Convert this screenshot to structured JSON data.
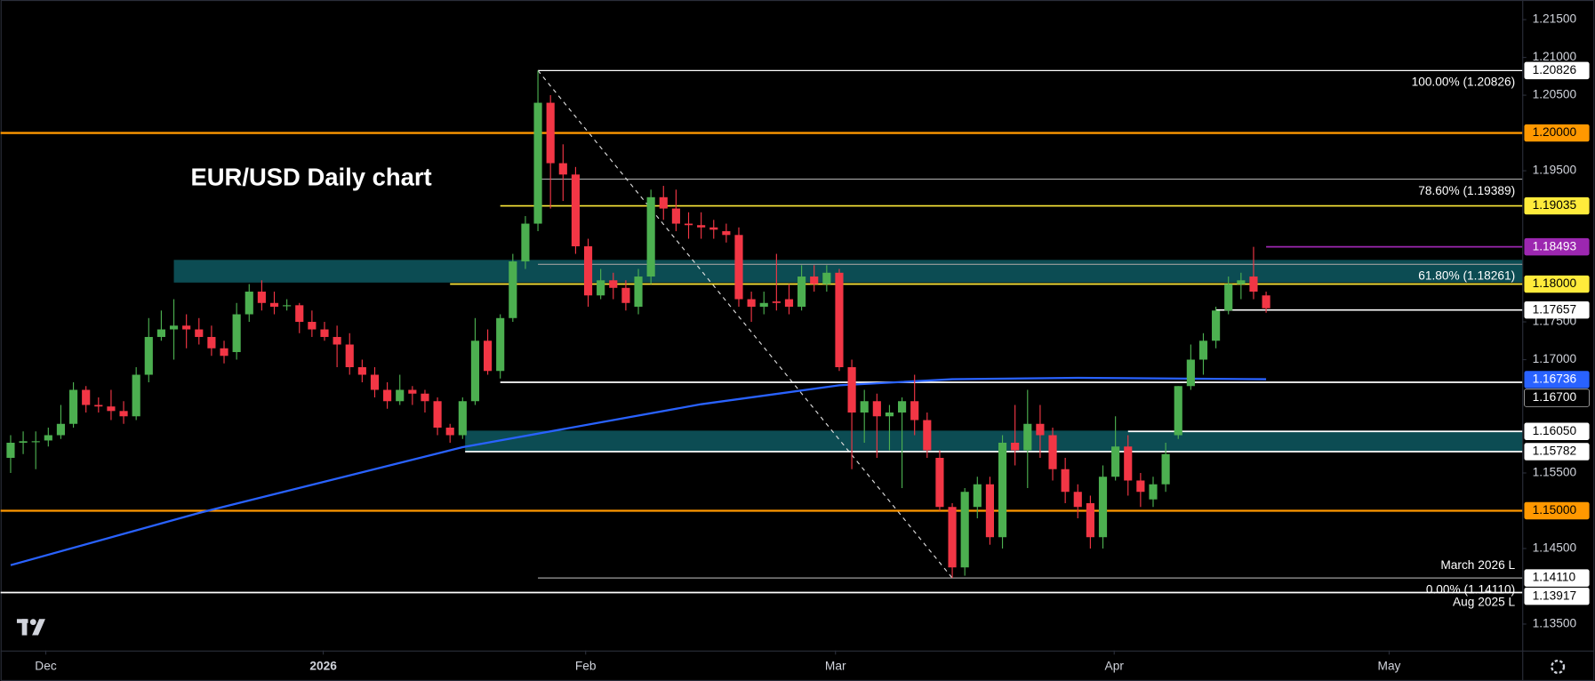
{
  "chart_data": {
    "type": "candlestick",
    "title": "EUR/USD Daily chart",
    "xlim": [
      -0.8,
      120.4
    ],
    "xticks": [
      {
        "value": 2.8,
        "label": "Dec"
      },
      {
        "value": 24.9,
        "label": "2026"
      },
      {
        "value": 45.8,
        "label": "Feb"
      },
      {
        "value": 65.7,
        "label": "Mar"
      },
      {
        "value": 87.9,
        "label": "Apr"
      },
      {
        "value": 109.8,
        "label": "May"
      }
    ],
    "ylim": [
      1.1315,
      1.2176
    ],
    "yticks": [
      {
        "value": 1.215,
        "label": "1.21500"
      },
      {
        "value": 1.21,
        "label": "1.21000"
      },
      {
        "value": 1.205,
        "label": "1.20500"
      },
      {
        "value": 1.195,
        "label": "1.19500"
      },
      {
        "value": 1.175,
        "label": "1.17500"
      },
      {
        "value": 1.17,
        "label": "1.17000"
      },
      {
        "value": 1.155,
        "label": "1.15500"
      },
      {
        "value": 1.145,
        "label": "1.14500"
      },
      {
        "value": 1.135,
        "label": "1.13500"
      }
    ],
    "up_color": "#4caf50",
    "down_color": "#f23645",
    "open": [
      1.157,
      1.159,
      1.1592,
      1.1593,
      1.16,
      1.1615,
      1.166,
      1.164,
      1.1638,
      1.1632,
      1.1625,
      1.168,
      1.173,
      1.174,
      1.1745,
      1.174,
      1.173,
      1.1715,
      1.171,
      1.176,
      1.179,
      1.1775,
      1.1772,
      1.1772,
      1.175,
      1.174,
      1.173,
      1.172,
      1.169,
      1.168,
      1.166,
      1.1645,
      1.166,
      1.1655,
      1.1645,
      1.161,
      1.16,
      1.1645,
      1.1725,
      1.1685,
      1.1755,
      1.183,
      1.188,
      1.204,
      1.196,
      1.1945,
      1.185,
      1.1785,
      1.1805,
      1.1795,
      1.177,
      1.181,
      1.1915,
      1.19,
      1.188,
      1.1878,
      1.1875,
      1.187,
      1.1865,
      1.178,
      1.177,
      1.1777,
      1.178,
      1.177,
      1.181,
      1.18,
      1.1815,
      1.169,
      1.163,
      1.1645,
      1.1625,
      1.163,
      1.1645,
      1.162,
      1.157,
      1.1505,
      1.1425,
      1.1505,
      1.1535,
      1.1465,
      1.159,
      1.158,
      1.1615,
      1.16,
      1.1555,
      1.1525,
      1.151,
      1.1465,
      1.1545,
      1.1585,
      1.154,
      1.1515,
      1.1535,
      1.16,
      1.1665,
      1.17,
      1.1725,
      1.1765,
      1.18,
      1.181,
      1.1785
    ],
    "high": [
      1.16,
      1.1605,
      1.1605,
      1.161,
      1.164,
      1.167,
      1.1665,
      1.165,
      1.166,
      1.1645,
      1.169,
      1.1755,
      1.1765,
      1.178,
      1.176,
      1.1755,
      1.1745,
      1.1725,
      1.1775,
      1.18,
      1.1805,
      1.179,
      1.178,
      1.1775,
      1.1765,
      1.175,
      1.1745,
      1.1735,
      1.17,
      1.169,
      1.167,
      1.168,
      1.1665,
      1.166,
      1.165,
      1.1615,
      1.165,
      1.1755,
      1.174,
      1.176,
      1.184,
      1.189,
      1.20826,
      1.205,
      1.1985,
      1.1955,
      1.186,
      1.182,
      1.1815,
      1.1805,
      1.182,
      1.1925,
      1.193,
      1.1925,
      1.1895,
      1.1895,
      1.1885,
      1.188,
      1.1875,
      1.179,
      1.179,
      1.184,
      1.18,
      1.1825,
      1.1825,
      1.1825,
      1.182,
      1.17,
      1.166,
      1.1655,
      1.164,
      1.165,
      1.168,
      1.163,
      1.158,
      1.151,
      1.153,
      1.1545,
      1.1545,
      1.16,
      1.164,
      1.166,
      1.164,
      1.161,
      1.157,
      1.1535,
      1.152,
      1.156,
      1.1625,
      1.16,
      1.155,
      1.1545,
      1.159,
      1.1665,
      1.172,
      1.1735,
      1.177,
      1.181,
      1.1815,
      1.18493,
      1.179
    ],
    "low": [
      1.155,
      1.1575,
      1.1555,
      1.1585,
      1.1595,
      1.161,
      1.163,
      1.163,
      1.162,
      1.1615,
      1.162,
      1.167,
      1.1725,
      1.17,
      1.1715,
      1.172,
      1.1705,
      1.1695,
      1.17,
      1.175,
      1.1765,
      1.176,
      1.1765,
      1.1735,
      1.173,
      1.1725,
      1.169,
      1.168,
      1.167,
      1.165,
      1.1635,
      1.164,
      1.164,
      1.163,
      1.16,
      1.159,
      1.1595,
      1.164,
      1.168,
      1.1675,
      1.175,
      1.182,
      1.187,
      1.19,
      1.191,
      1.184,
      1.177,
      1.178,
      1.178,
      1.1765,
      1.176,
      1.18,
      1.1885,
      1.187,
      1.186,
      1.186,
      1.186,
      1.1855,
      1.177,
      1.175,
      1.176,
      1.1765,
      1.176,
      1.1765,
      1.179,
      1.179,
      1.1685,
      1.1555,
      1.159,
      1.157,
      1.158,
      1.153,
      1.16,
      1.157,
      1.15,
      1.1411,
      1.1414,
      1.149,
      1.1455,
      1.145,
      1.156,
      1.153,
      1.157,
      1.154,
      1.151,
      1.149,
      1.145,
      1.145,
      1.154,
      1.152,
      1.1505,
      1.1505,
      1.1525,
      1.1595,
      1.166,
      1.168,
      1.1715,
      1.176,
      1.178,
      1.178,
      1.1762
    ],
    "close": [
      1.159,
      1.1592,
      1.1592,
      1.16,
      1.1615,
      1.166,
      1.164,
      1.1638,
      1.1632,
      1.1625,
      1.168,
      1.173,
      1.174,
      1.1745,
      1.174,
      1.173,
      1.1715,
      1.1705,
      1.176,
      1.179,
      1.1775,
      1.177,
      1.1772,
      1.175,
      1.174,
      1.173,
      1.172,
      1.169,
      1.168,
      1.166,
      1.1645,
      1.166,
      1.1655,
      1.1645,
      1.161,
      1.16,
      1.1645,
      1.1725,
      1.1685,
      1.1755,
      1.183,
      1.188,
      1.204,
      1.196,
      1.1945,
      1.185,
      1.1785,
      1.1805,
      1.1795,
      1.1775,
      1.181,
      1.1915,
      1.19,
      1.188,
      1.1878,
      1.1875,
      1.1872,
      1.1865,
      1.178,
      1.177,
      1.1775,
      1.1775,
      1.177,
      1.181,
      1.18,
      1.1815,
      1.169,
      1.163,
      1.1645,
      1.1625,
      1.163,
      1.1645,
      1.162,
      1.158,
      1.1505,
      1.1425,
      1.1525,
      1.1535,
      1.1465,
      1.159,
      1.158,
      1.1615,
      1.16,
      1.1555,
      1.1525,
      1.1505,
      1.1465,
      1.1545,
      1.1585,
      1.154,
      1.1525,
      1.1535,
      1.1575,
      1.1665,
      1.17,
      1.1725,
      1.1765,
      1.18,
      1.1805,
      1.179,
      1.1768
    ],
    "ma": {
      "color": "#2962ff",
      "x": [
        0,
        15,
        36,
        55,
        66,
        75,
        85,
        100
      ],
      "values": [
        1.1428,
        1.1497,
        1.1584,
        1.1641,
        1.1666,
        1.1674,
        1.1676,
        1.1674
      ]
    },
    "zones": [
      {
        "from": 1.1802,
        "to": 1.1832,
        "x_start": 13,
        "color": "#0e5961"
      },
      {
        "from": 1.1579,
        "to": 1.1606,
        "x_start": 36.2,
        "color": "#0e5961"
      }
    ],
    "levels": [
      {
        "value": 1.20826,
        "label": "1.20826",
        "color": "#ffffff",
        "text_color": "#000000"
      },
      {
        "value": 1.2,
        "label": "1.20000",
        "color": "#ff9800",
        "text_color": "#000000",
        "full": true
      },
      {
        "value": 1.19035,
        "label": "1.19035",
        "color": "#ffeb3b",
        "text_color": "#000000",
        "x_start": 39
      },
      {
        "value": 1.18493,
        "label": "1.18493",
        "color": "#9c27b0",
        "text_color": "#ffffff",
        "x_start": 100
      },
      {
        "value": 1.18,
        "label": "1.18000",
        "color": "#ffeb3b",
        "text_color": "#000000",
        "x_start": 35
      },
      {
        "value": 1.17657,
        "label": "1.17657",
        "color": "#ffffff",
        "text_color": "#000000",
        "x_start": 96
      },
      {
        "value": 1.16736,
        "label": "1.16736",
        "color": "#2962ff",
        "text_color": "#ffffff"
      },
      {
        "value": 1.167,
        "label": "1.16700",
        "color": "#ffffff",
        "text_color": "#ffffff",
        "x_start": 39,
        "box": "#000000"
      },
      {
        "value": 1.1605,
        "label": "1.16050",
        "color": "#ffffff",
        "text_color": "#000000",
        "x_start": 89
      },
      {
        "value": 1.15782,
        "label": "1.15782",
        "color": "#ffffff",
        "text_color": "#000000",
        "x_start": 36.2
      },
      {
        "value": 1.15,
        "label": "1.15000",
        "color": "#ff9800",
        "text_color": "#000000",
        "full": true
      },
      {
        "value": 1.1411,
        "label": "1.14110",
        "color": "#ffffff",
        "text_color": "#000000"
      },
      {
        "value": 1.13917,
        "label": "1.13917",
        "color": "#ffffff",
        "text_color": "#000000",
        "full": true
      }
    ],
    "fibonacci": {
      "x": [
        42,
        75
      ],
      "levels": [
        {
          "value": 1.20826,
          "label": "100.00% (1.20826)",
          "color": "#ffffff"
        },
        {
          "value": 1.19389,
          "label": "78.60% (1.19389)",
          "color": "#9e9e9e"
        },
        {
          "value": 1.18261,
          "label": "61.80% (1.18261)",
          "color": "#9e9e9e"
        },
        {
          "value": 1.1411,
          "label": "0.00% (1.14110)",
          "color": "#9e9e9e"
        }
      ]
    },
    "annotations": [
      {
        "text": "March 2026 L",
        "value": 1.1411,
        "position": "above"
      },
      {
        "text": "Aug 2025 L",
        "value": 1.13917,
        "position": "below"
      }
    ]
  }
}
